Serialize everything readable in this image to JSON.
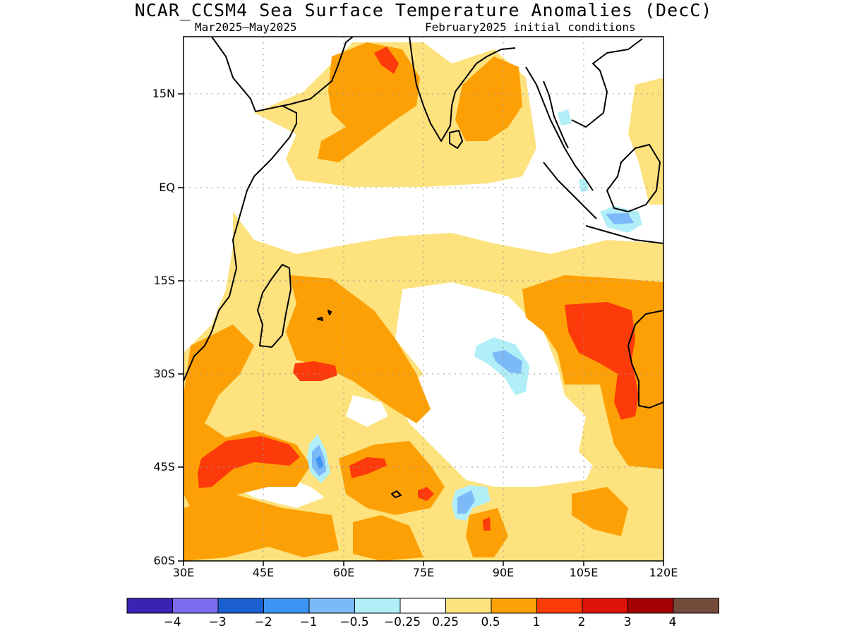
{
  "title": "NCAR_CCSM4 Sea Surface Temperature Anomalies (DecC)",
  "subtitle_left": "Mar2025—May2025",
  "subtitle_right": "February2025 initial conditions",
  "y_axis": {
    "ticks": [
      "15N",
      "EQ",
      "15S",
      "30S",
      "45S",
      "60S"
    ]
  },
  "x_axis": {
    "ticks": [
      "30E",
      "45E",
      "60E",
      "75E",
      "90E",
      "105E",
      "120E"
    ]
  },
  "colorbar": {
    "labels": [
      "−4",
      "−3",
      "−2",
      "−1",
      "−0.5",
      "−0.25",
      "0.25",
      "0.5",
      "1",
      "2",
      "3",
      "4"
    ],
    "colors": [
      "#3a22b4",
      "#7b6cee",
      "#1b5fd1",
      "#3c94f5",
      "#7cb9f8",
      "#b0eef8",
      "#ffffff",
      "#fde27d",
      "#fda005",
      "#fd3a0a",
      "#dd1208",
      "#a40004",
      "#754b3c"
    ]
  },
  "colors": {
    "pos_025": "#fde27d",
    "pos_05": "#fda005",
    "pos_1": "#fd3a0a",
    "neg_025": "#b0eef8",
    "neg_05": "#7cb9f8",
    "neg_1": "#3c94f5",
    "coast": "#000000"
  }
}
